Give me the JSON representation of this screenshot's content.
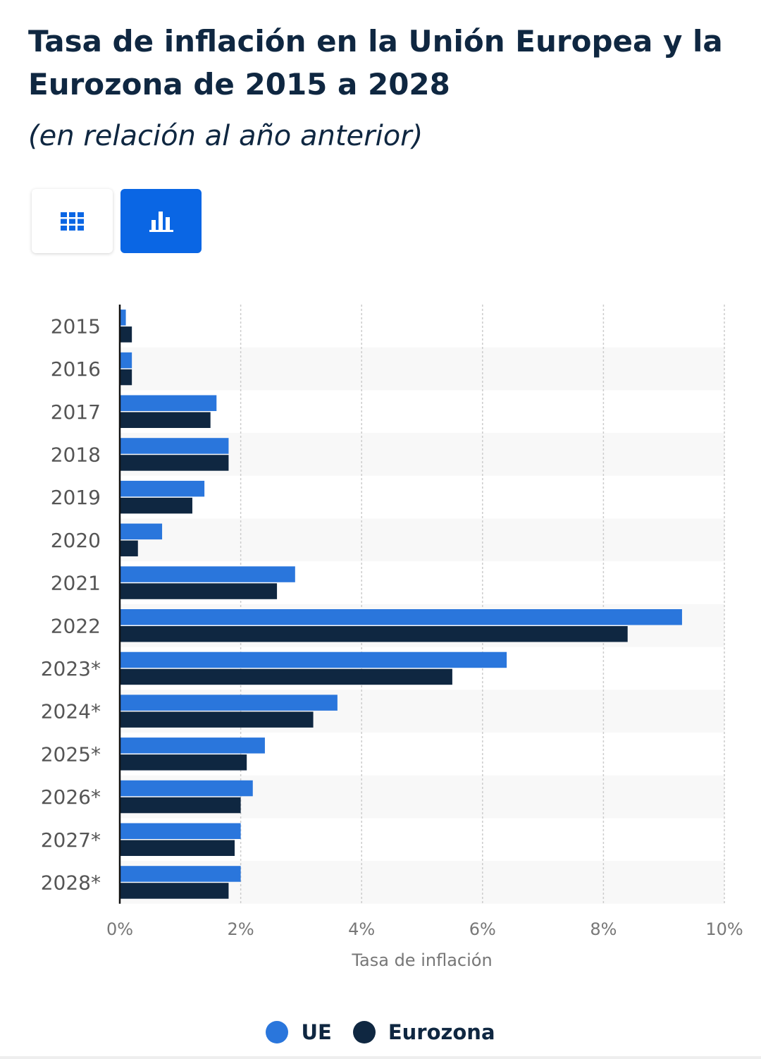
{
  "title": "Tasa de inflación en la Unión Europea y la Eurozona de 2015 a 2028",
  "subtitle": "(en relación al año anterior)",
  "view_toggle": {
    "table_icon": "grid-table-icon",
    "chart_icon": "bar-chart-icon",
    "active": "chart"
  },
  "colors": {
    "accent": "#0a66e4",
    "ue": "#2a76dc",
    "eurozona": "#0f2741",
    "stripe": "#f8f8f8",
    "grid": "#cccccc",
    "tick": "#777777"
  },
  "chart_data": {
    "type": "bar",
    "orientation": "horizontal",
    "categories": [
      "2015",
      "2016",
      "2017",
      "2018",
      "2019",
      "2020",
      "2021",
      "2022",
      "2023*",
      "2024*",
      "2025*",
      "2026*",
      "2027*",
      "2028*"
    ],
    "series": [
      {
        "name": "UE",
        "values": [
          0.1,
          0.2,
          1.6,
          1.8,
          1.4,
          0.7,
          2.9,
          9.3,
          6.4,
          3.6,
          2.4,
          2.2,
          2.0,
          2.0
        ]
      },
      {
        "name": "Eurozona",
        "values": [
          0.2,
          0.2,
          1.5,
          1.8,
          1.2,
          0.3,
          2.6,
          8.4,
          5.5,
          3.2,
          2.1,
          2.0,
          1.9,
          1.8
        ]
      }
    ],
    "xlim": [
      0,
      10
    ],
    "xticks": [
      "0%",
      "2%",
      "4%",
      "6%",
      "8%",
      "10%"
    ],
    "xlabel": "Tasa de inflación",
    "ylabel": "",
    "grid": true,
    "legend": "bottom-center"
  }
}
